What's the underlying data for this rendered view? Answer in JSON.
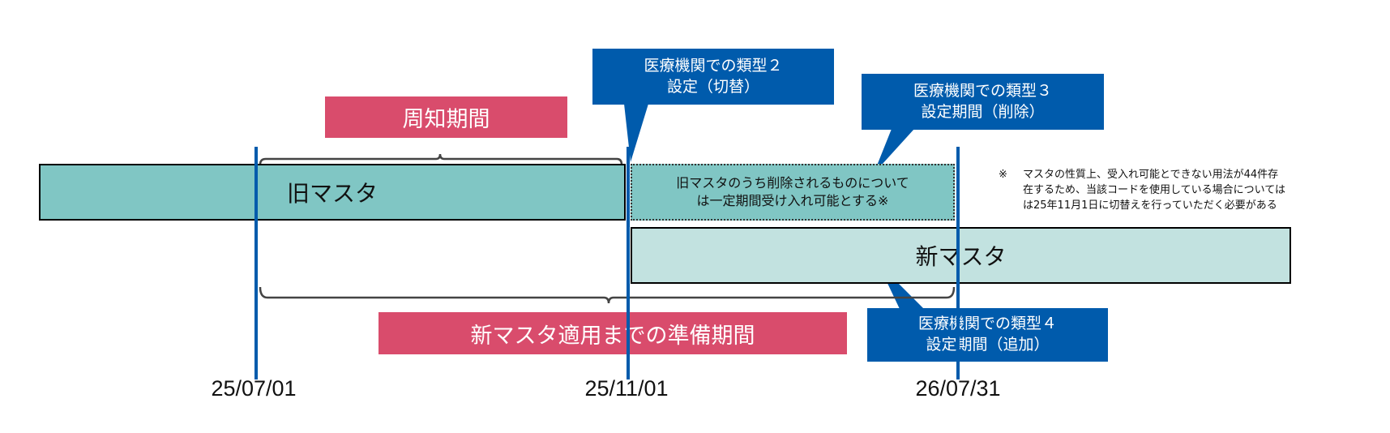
{
  "colors": {
    "old_master": "#80c6c4",
    "new_master": "#c2e2e0",
    "label_pink": "#d94c6c",
    "callout_blue": "#005bac",
    "timeline_line": "#005bac"
  },
  "labels": {
    "notice_period": "周知期間",
    "old_master": "旧マスタ",
    "transition_line1": "旧マスタのうち削除されるものについて",
    "transition_line2": "は一定期間受け入れ可能とする※",
    "new_master": "新マスタ",
    "prep_period": "新マスタ適用までの準備期間"
  },
  "callouts": [
    {
      "line1": "医療機関での類型２",
      "line2": "設定（切替）"
    },
    {
      "line1": "医療機関での類型３",
      "line2": "設定期間（削除）"
    },
    {
      "line1": "医療機関での類型４",
      "line2": "設定期間（追加）"
    }
  ],
  "dates": [
    "25/07/01",
    "25/11/01",
    "26/07/31"
  ],
  "note": {
    "mark": "※",
    "line1": "マスタの性質上、受入れ可能とできない用法が44件存",
    "line2": "在するため、当該コードを使用している場合については",
    "line3": "は25年11月1日に切替えを行っていただく必要がある"
  }
}
